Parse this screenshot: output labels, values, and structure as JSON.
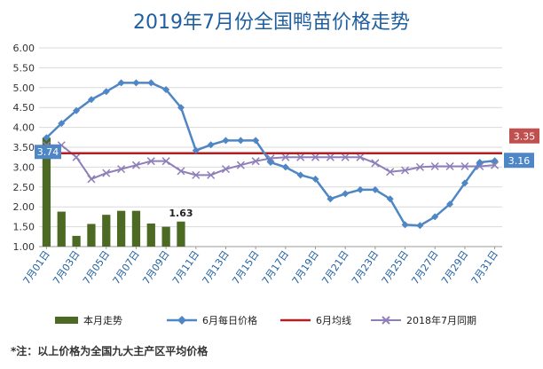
{
  "colors": {
    "bar": "#4d6a24",
    "june": "#4f86c6",
    "june_avg": "#b01f24",
    "ref2018": "#8f7fb8",
    "grid": "#d9d9d9",
    "callout_blue": "#4f86c6",
    "callout_red": "#c0504d"
  },
  "chart_data": {
    "type": "bar+line",
    "title": "2019年7月份全国鸭苗价格走势",
    "categories": [
      "7月01日",
      "7月02日",
      "7月03日",
      "7月04日",
      "7月05日",
      "7月06日",
      "7月07日",
      "7月08日",
      "7月09日",
      "7月10日",
      "7月11日",
      "7月12日",
      "7月13日",
      "7月14日",
      "7月15日",
      "7月16日",
      "7月17日",
      "7月18日",
      "7月19日",
      "7月20日",
      "7月21日",
      "7月22日",
      "7月23日",
      "7月24日",
      "7月25日",
      "7月26日",
      "7月27日",
      "7月28日",
      "7月29日",
      "7月30日",
      "7月31日"
    ],
    "x_tick_labels": [
      "7月01日",
      "7月03日",
      "7月05日",
      "7月07日",
      "7月09日",
      "7月11日",
      "7月13日",
      "7月15日",
      "7月17日",
      "7月19日",
      "7月21日",
      "7月23日",
      "7月25日",
      "7月27日",
      "7月29日",
      "7月31日"
    ],
    "ylim": [
      1.0,
      6.0
    ],
    "y_ticks": [
      "1.00",
      "1.50",
      "2.00",
      "2.50",
      "3.00",
      "3.50",
      "4.00",
      "4.50",
      "5.00",
      "5.50",
      "6.00"
    ],
    "grid": true,
    "legend_position": "bottom",
    "series": [
      {
        "name": "本月走势",
        "type": "bar",
        "values": [
          3.74,
          1.88,
          1.27,
          1.57,
          1.8,
          1.9,
          1.9,
          1.58,
          1.5,
          1.63,
          null,
          null,
          null,
          null,
          null,
          null,
          null,
          null,
          null,
          null,
          null,
          null,
          null,
          null,
          null,
          null,
          null,
          null,
          null,
          null,
          null
        ]
      },
      {
        "name": "6月每日价格",
        "type": "line",
        "values": [
          3.74,
          4.1,
          4.42,
          4.7,
          4.9,
          5.12,
          5.12,
          5.12,
          4.95,
          4.5,
          3.42,
          3.56,
          3.67,
          3.67,
          3.67,
          3.12,
          3.0,
          2.8,
          2.7,
          2.2,
          2.33,
          2.43,
          2.43,
          2.2,
          1.55,
          1.53,
          1.75,
          2.07,
          2.6,
          3.12,
          3.16
        ]
      },
      {
        "name": "6月均线",
        "type": "line",
        "values": "constant",
        "constant": 3.35
      },
      {
        "name": "2018年7月同期",
        "type": "line",
        "values": [
          3.55,
          3.55,
          3.25,
          2.7,
          2.85,
          2.95,
          3.05,
          3.15,
          3.15,
          2.9,
          2.8,
          2.8,
          2.95,
          3.05,
          3.15,
          3.22,
          3.25,
          3.25,
          3.25,
          3.25,
          3.25,
          3.25,
          3.1,
          2.88,
          2.92,
          3.0,
          3.02,
          3.02,
          3.02,
          3.02,
          3.05
        ]
      }
    ],
    "annotations": {
      "bar_last_label": "1.63",
      "first_value_label": "3.74",
      "avg_label": "3.35",
      "last_value_label": "3.16"
    }
  },
  "footnote": "*注：以上价格为全国九大主产区平均价格"
}
